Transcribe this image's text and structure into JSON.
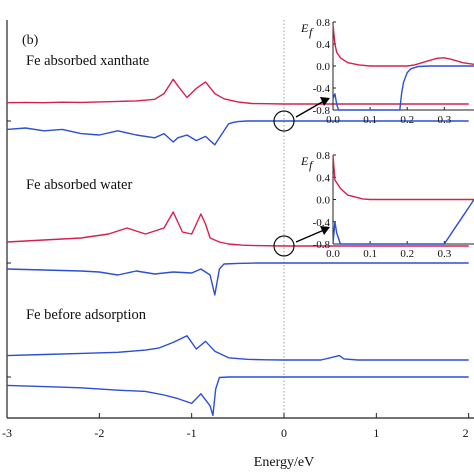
{
  "figure": {
    "panel_label": "(b)",
    "colors": {
      "spin_up": "#d6204f",
      "spin_down": "#2c4fd6",
      "axis": "#222222",
      "fermi_line": "#888888",
      "arrow": "#000000"
    }
  },
  "chart_data": {
    "type": "line",
    "xlabel": "Energy/eV",
    "x_ticks": [
      "-3",
      "-2",
      "-1",
      "0",
      "1",
      "2"
    ],
    "xlim": [
      -3,
      2
    ],
    "fermi_level": 0,
    "grid": false,
    "panels": [
      {
        "label": "Fe absorbed xanthate",
        "series": [
          {
            "spin": "up",
            "color": "#d6204f",
            "x": [
              -3.0,
              -2.8,
              -2.6,
              -2.4,
              -2.2,
              -2.0,
              -1.8,
              -1.6,
              -1.4,
              -1.3,
              -1.2,
              -1.15,
              -1.05,
              -0.95,
              -0.85,
              -0.75,
              -0.65,
              -0.5,
              -0.35,
              -0.2,
              0.0,
              0.3,
              0.6,
              1.0,
              1.5,
              2.0
            ],
            "y": [
              0.05,
              0.06,
              0.05,
              0.07,
              0.06,
              0.08,
              0.1,
              0.12,
              0.18,
              0.4,
              0.95,
              0.7,
              0.25,
              0.6,
              0.85,
              0.4,
              0.2,
              0.08,
              0.02,
              0.01,
              0.0,
              0.0,
              0.0,
              0.0,
              0.0,
              0.0
            ]
          },
          {
            "spin": "down",
            "color": "#2c4fd6",
            "x": [
              -3.0,
              -2.8,
              -2.6,
              -2.4,
              -2.2,
              -2.0,
              -1.8,
              -1.6,
              -1.4,
              -1.3,
              -1.2,
              -1.15,
              -1.05,
              -0.95,
              -0.85,
              -0.75,
              -0.65,
              -0.6,
              -0.55,
              -0.5,
              -0.4,
              -0.2,
              0.0,
              0.3,
              0.6,
              1.0,
              1.5,
              2.0
            ],
            "y": [
              -0.3,
              -0.25,
              -0.35,
              -0.3,
              -0.45,
              -0.5,
              -0.35,
              -0.5,
              -0.6,
              -0.45,
              -0.75,
              -0.6,
              -0.5,
              -0.7,
              -0.55,
              -0.85,
              -0.35,
              -0.1,
              -0.05,
              -0.02,
              0.0,
              0.0,
              0.0,
              0.0,
              0.0,
              0.0,
              0.0,
              0.0
            ]
          }
        ]
      },
      {
        "label": "Fe absorbed water",
        "series": [
          {
            "spin": "up",
            "color": "#d6204f",
            "x": [
              -3.0,
              -2.6,
              -2.2,
              -1.9,
              -1.7,
              -1.5,
              -1.3,
              -1.2,
              -1.1,
              -1.0,
              -0.9,
              -0.85,
              -0.8,
              -0.7,
              -0.6,
              -0.45,
              -0.3,
              0.0,
              0.5,
              1.0,
              1.5,
              2.0
            ],
            "y": [
              0.1,
              0.15,
              0.2,
              0.3,
              0.45,
              0.3,
              0.45,
              0.85,
              0.35,
              0.3,
              0.8,
              0.55,
              0.2,
              0.1,
              0.05,
              0.02,
              0.01,
              0.0,
              0.0,
              0.0,
              0.0,
              0.0
            ]
          },
          {
            "spin": "down",
            "color": "#2c4fd6",
            "x": [
              -3.0,
              -2.6,
              -2.2,
              -2.0,
              -1.8,
              -1.6,
              -1.4,
              -1.2,
              -1.0,
              -0.9,
              -0.8,
              -0.75,
              -0.7,
              -0.65,
              -0.5,
              -0.3,
              0.0,
              0.5,
              1.0,
              1.5,
              2.0
            ],
            "y": [
              -0.3,
              -0.35,
              -0.4,
              -0.45,
              -0.6,
              -0.4,
              -0.55,
              -0.45,
              -0.5,
              -0.3,
              -0.6,
              -1.6,
              -0.3,
              -0.05,
              -0.02,
              0.0,
              0.0,
              0.0,
              0.0,
              0.0,
              0.0
            ]
          }
        ]
      },
      {
        "label": "Fe before adsorption",
        "series": [
          {
            "spin": "up",
            "color": "#2c4fd6",
            "x": [
              -3.0,
              -2.6,
              -2.2,
              -1.8,
              -1.5,
              -1.35,
              -1.2,
              -1.05,
              -0.95,
              -0.85,
              -0.75,
              -0.6,
              -0.4,
              -0.2,
              0.0,
              0.2,
              0.4,
              0.55,
              0.6,
              0.65,
              0.8,
              1.0,
              1.5,
              2.0
            ],
            "y": [
              0.2,
              0.25,
              0.3,
              0.35,
              0.45,
              0.55,
              0.8,
              1.1,
              0.5,
              0.85,
              0.4,
              0.1,
              0.03,
              0.01,
              0.0,
              0.0,
              0.0,
              0.15,
              0.2,
              0.05,
              0.0,
              0.0,
              0.0,
              0.0
            ]
          },
          {
            "spin": "down",
            "color": "#2c4fd6",
            "x": [
              -3.0,
              -2.6,
              -2.2,
              -1.8,
              -1.5,
              -1.3,
              -1.15,
              -1.0,
              -0.9,
              -0.8,
              -0.77,
              -0.74,
              -0.7,
              -0.6,
              -0.4,
              0.0,
              0.5,
              1.0,
              1.5,
              2.0
            ],
            "y": [
              -0.35,
              -0.4,
              -0.45,
              -0.55,
              -0.6,
              -0.75,
              -0.9,
              -1.1,
              -0.7,
              -1.2,
              -1.6,
              -0.5,
              -0.02,
              0.0,
              0.0,
              0.0,
              0.0,
              0.0,
              0.0,
              0.0
            ]
          }
        ]
      }
    ],
    "insets": [
      {
        "ylabel": "E",
        "ylabel_sub": "f",
        "y_ticks": [
          "0.8",
          "0.4",
          "0.0",
          "-0.4",
          "-0.8"
        ],
        "x_ticks": [
          "0.0",
          "0.1",
          "0.2",
          "0.3"
        ],
        "xlim": [
          0,
          0.38
        ],
        "ylim": [
          -0.8,
          0.8
        ],
        "series": [
          {
            "spin": "up",
            "color": "#d6204f",
            "x": [
              0.0,
              0.005,
              0.01,
              0.02,
              0.04,
              0.07,
              0.1,
              0.15,
              0.2,
              0.22,
              0.25,
              0.28,
              0.3,
              0.32,
              0.35,
              0.38
            ],
            "y": [
              0.75,
              0.4,
              0.25,
              0.15,
              0.06,
              0.02,
              0.0,
              0.0,
              0.0,
              0.02,
              0.08,
              0.14,
              0.15,
              0.12,
              0.06,
              0.03
            ]
          },
          {
            "spin": "down",
            "color": "#2c4fd6",
            "x": [
              0.0,
              0.005,
              0.01,
              0.015,
              0.1,
              0.18,
              0.185,
              0.19,
              0.2,
              0.21,
              0.23,
              0.26,
              0.3,
              0.38
            ],
            "y": [
              -0.6,
              -0.5,
              -0.7,
              -0.8,
              -0.8,
              -0.8,
              -0.5,
              -0.3,
              -0.12,
              -0.05,
              -0.01,
              0.0,
              0.0,
              0.0
            ]
          }
        ]
      },
      {
        "ylabel": "E",
        "ylabel_sub": "f",
        "y_ticks": [
          "0.8",
          "0.4",
          "0.0",
          "-0.4",
          "-0.8"
        ],
        "x_ticks": [
          "0.0",
          "0.1",
          "0.2",
          "0.3"
        ],
        "xlim": [
          0,
          0.38
        ],
        "ylim": [
          -0.8,
          0.8
        ],
        "series": [
          {
            "spin": "up",
            "color": "#d6204f",
            "x": [
              0.0,
              0.005,
              0.01,
              0.02,
              0.04,
              0.08,
              0.1,
              0.2,
              0.3,
              0.38
            ],
            "y": [
              0.8,
              0.35,
              0.3,
              0.2,
              0.08,
              0.01,
              0.0,
              0.0,
              0.0,
              0.0
            ]
          },
          {
            "spin": "down",
            "color": "#2c4fd6",
            "x": [
              0.0,
              0.005,
              0.01,
              0.02,
              0.1,
              0.3,
              0.31,
              0.33,
              0.35,
              0.37,
              0.38
            ],
            "y": [
              -0.8,
              -0.4,
              -0.6,
              -0.8,
              -0.8,
              -0.8,
              -0.7,
              -0.5,
              -0.3,
              -0.1,
              0.0
            ]
          }
        ]
      }
    ]
  }
}
